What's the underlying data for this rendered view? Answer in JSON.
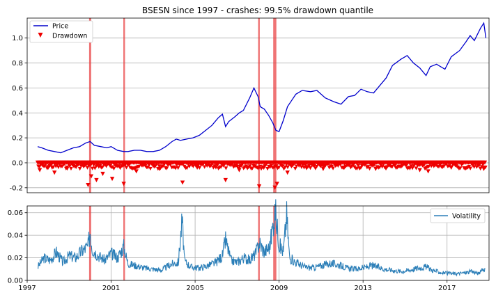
{
  "chart_data": [
    {
      "type": "line",
      "title": "BSESN since 1997 - crashes: 99.5% drawdown quantile",
      "xlabel": "",
      "ylabel": "",
      "xlim": [
        1997.0,
        2019.0
      ],
      "ylim": [
        -0.24,
        1.16
      ],
      "yticks": [
        "-0.2",
        "0.0",
        "0.2",
        "0.4",
        "0.6",
        "0.8",
        "1.0"
      ],
      "grid": "horizontal",
      "legend_position": "top-left",
      "crash_periods": [
        [
          1999.95,
          2000.05
        ],
        [
          2001.58,
          2001.66
        ],
        [
          2008.0,
          2008.08
        ],
        [
          2008.72,
          2008.87
        ]
      ],
      "series": [
        {
          "name": "Price",
          "color": "#0000cc",
          "x": [
            1997.5,
            1997.7,
            1998.0,
            1998.3,
            1998.6,
            1998.9,
            1999.2,
            1999.5,
            1999.8,
            2000.0,
            2000.2,
            2000.5,
            2000.8,
            2001.0,
            2001.3,
            2001.6,
            2001.8,
            2002.1,
            2002.4,
            2002.7,
            2003.0,
            2003.3,
            2003.6,
            2003.9,
            2004.1,
            2004.3,
            2004.6,
            2004.9,
            2005.2,
            2005.5,
            2005.8,
            2006.1,
            2006.3,
            2006.45,
            2006.6,
            2006.9,
            2007.1,
            2007.3,
            2007.6,
            2007.8,
            2008.0,
            2008.1,
            2008.3,
            2008.5,
            2008.7,
            2008.85,
            2009.0,
            2009.2,
            2009.4,
            2009.6,
            2009.8,
            2010.1,
            2010.5,
            2010.8,
            2011.2,
            2011.6,
            2011.95,
            2012.3,
            2012.6,
            2012.9,
            2013.2,
            2013.5,
            2013.8,
            2014.1,
            2014.4,
            2014.8,
            2015.1,
            2015.4,
            2015.7,
            2016.0,
            2016.2,
            2016.5,
            2016.9,
            2017.2,
            2017.6,
            2017.9,
            2018.1,
            2018.3,
            2018.6,
            2018.75,
            2018.85
          ],
          "values": [
            0.13,
            0.12,
            0.1,
            0.09,
            0.08,
            0.1,
            0.12,
            0.13,
            0.16,
            0.17,
            0.14,
            0.13,
            0.12,
            0.13,
            0.1,
            0.09,
            0.09,
            0.1,
            0.1,
            0.09,
            0.09,
            0.1,
            0.13,
            0.17,
            0.19,
            0.18,
            0.19,
            0.2,
            0.22,
            0.26,
            0.3,
            0.36,
            0.39,
            0.29,
            0.33,
            0.37,
            0.4,
            0.42,
            0.52,
            0.6,
            0.53,
            0.45,
            0.43,
            0.38,
            0.32,
            0.26,
            0.25,
            0.34,
            0.45,
            0.5,
            0.55,
            0.58,
            0.57,
            0.58,
            0.52,
            0.49,
            0.47,
            0.53,
            0.54,
            0.59,
            0.57,
            0.56,
            0.62,
            0.68,
            0.78,
            0.83,
            0.86,
            0.8,
            0.76,
            0.7,
            0.77,
            0.79,
            0.75,
            0.85,
            0.9,
            0.97,
            1.02,
            0.98,
            1.08,
            1.12,
            1.0
          ]
        },
        {
          "name": "Drawdown",
          "color": "#ee0000",
          "x": [
            1997.6,
            1998.0,
            1998.3,
            1998.9,
            1999.9,
            2000.05,
            2000.3,
            2000.6,
            2001.05,
            2001.6,
            2002.2,
            2003.3,
            2004.4,
            2005.1,
            2006.45,
            2007.1,
            2008.05,
            2008.8,
            2008.9,
            2009.4,
            2010.3,
            2011.1,
            2012.1,
            2013.6,
            2014.1,
            2015.7,
            2016.1,
            2017.2,
            2018.75
          ],
          "values": [
            -0.06,
            -0.04,
            -0.08,
            -0.04,
            -0.18,
            -0.11,
            -0.14,
            -0.09,
            -0.13,
            -0.17,
            -0.07,
            -0.05,
            -0.16,
            -0.04,
            -0.14,
            -0.06,
            -0.19,
            -0.2,
            -0.17,
            -0.08,
            -0.04,
            -0.05,
            -0.04,
            -0.05,
            -0.04,
            -0.06,
            -0.07,
            -0.04,
            -0.05
          ]
        }
      ]
    },
    {
      "type": "line",
      "title": "",
      "xlabel": "",
      "ylabel": "",
      "xlim": [
        1997.0,
        2019.0
      ],
      "ylim": [
        0.0,
        0.066
      ],
      "yticks": [
        "0.00",
        "0.02",
        "0.04",
        "0.06"
      ],
      "xticks": [
        "1997",
        "2001",
        "2005",
        "2009",
        "2013",
        "2017"
      ],
      "grid": "both",
      "legend_position": "top-right",
      "crash_periods": [
        [
          1999.95,
          2000.05
        ],
        [
          2001.58,
          2001.66
        ],
        [
          2008.0,
          2008.08
        ],
        [
          2008.72,
          2008.87
        ]
      ],
      "series": [
        {
          "name": "Volatility",
          "color": "#2c7fb8",
          "x": [
            1997.5,
            1997.8,
            1998.1,
            1998.4,
            1998.7,
            1999.0,
            1999.3,
            1999.6,
            1999.9,
            2000.0,
            2000.1,
            2000.4,
            2000.7,
            2001.0,
            2001.3,
            2001.6,
            2001.8,
            2002.2,
            2002.6,
            2003.0,
            2003.4,
            2003.8,
            2004.2,
            2004.38,
            2004.5,
            2004.8,
            2005.2,
            2005.6,
            2006.0,
            2006.3,
            2006.45,
            2006.7,
            2007.0,
            2007.3,
            2007.6,
            2007.9,
            2008.05,
            2008.3,
            2008.55,
            2008.82,
            2009.0,
            2009.2,
            2009.36,
            2009.5,
            2009.8,
            2010.2,
            2010.6,
            2011.0,
            2011.4,
            2011.8,
            2012.2,
            2012.6,
            2013.0,
            2013.4,
            2013.7,
            2014.0,
            2014.4,
            2014.8,
            2015.2,
            2015.6,
            2016.0,
            2016.3,
            2016.7,
            2017.1,
            2017.5,
            2017.9,
            2018.2,
            2018.5,
            2018.8
          ],
          "values": [
            0.012,
            0.02,
            0.018,
            0.025,
            0.016,
            0.022,
            0.02,
            0.026,
            0.03,
            0.044,
            0.028,
            0.022,
            0.018,
            0.024,
            0.02,
            0.03,
            0.015,
            0.013,
            0.011,
            0.01,
            0.009,
            0.014,
            0.016,
            0.053,
            0.017,
            0.012,
            0.011,
            0.013,
            0.016,
            0.022,
            0.036,
            0.018,
            0.016,
            0.02,
            0.018,
            0.024,
            0.034,
            0.025,
            0.03,
            0.062,
            0.032,
            0.025,
            0.058,
            0.02,
            0.016,
            0.012,
            0.011,
            0.013,
            0.015,
            0.014,
            0.011,
            0.01,
            0.011,
            0.013,
            0.012,
            0.01,
            0.009,
            0.008,
            0.009,
            0.011,
            0.012,
            0.009,
            0.007,
            0.006,
            0.006,
            0.007,
            0.008,
            0.006,
            0.011
          ]
        }
      ]
    }
  ]
}
